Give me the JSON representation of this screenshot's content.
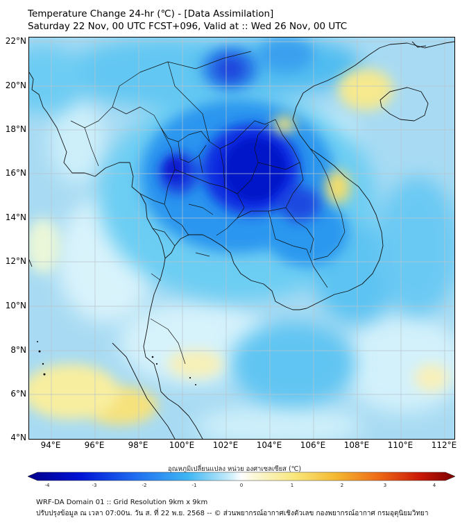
{
  "title": {
    "line1": "Temperature Change 24-hr (℃) - [Data Assimilation]",
    "line2": "Saturday 22 Nov, 00 UTC FCST+096, Valid at :: Wed 26 Nov, 00 UTC"
  },
  "map": {
    "lon_range": [
      93,
      112.5
    ],
    "lat_range": [
      4,
      22.2
    ],
    "lat_labels": [
      "22°N",
      "20°N",
      "18°N",
      "16°N",
      "14°N",
      "12°N",
      "10°N",
      "8°N",
      "6°N",
      "4°N"
    ],
    "lon_labels": [
      "94°E",
      "96°E",
      "98°E",
      "100°E",
      "102°E",
      "104°E",
      "106°E",
      "108°E",
      "110°E",
      "112°E"
    ],
    "gridlines": true,
    "field_colors": {
      "strong_cooling": "#0a18d6",
      "moderate_cooling": "#1e8ef0",
      "slight_cooling": "#55c4f2",
      "neutral": "#d8f3fb",
      "slight_warming": "#f9f2b0",
      "warming": "#f7dc68"
    }
  },
  "colorbar": {
    "title": "อุณหภูมิเปลี่ยนแปลง หน่วย องศาเซลเซียส (℃)",
    "ticks": [
      "-4",
      "-3",
      "-2",
      "-1",
      "0",
      "1",
      "2",
      "3",
      "4"
    ],
    "range": [
      -4,
      4
    ]
  },
  "footer": {
    "line1": "WRF-DA Domain 01 :: Grid Resolution 9km x 9km",
    "line2": "ปรับปรุงข้อมูล ณ เวลา 07:00น. วัน ส. ที่ 22 พ.ย. 2568 -- © ส่วนพยากรณ์อากาศเชิงตัวเลข กองพยากรณ์อากาศ กรมอุตุนิยมวิทยา"
  }
}
